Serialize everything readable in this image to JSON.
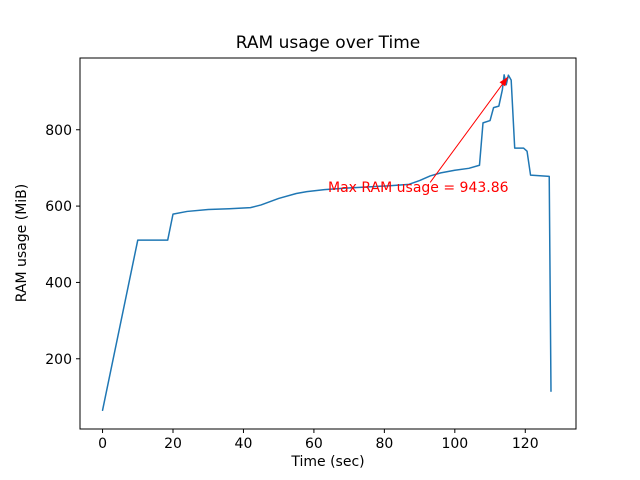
{
  "figure": {
    "background": "#ffffff"
  },
  "chart_data": {
    "type": "line",
    "title": "RAM usage over Time",
    "xlabel": "Time (sec)",
    "ylabel": "RAM usage (MiB)",
    "xlim": [
      -6.4,
      134.4
    ],
    "ylim": [
      16,
      988
    ],
    "xticks": [
      0,
      20,
      40,
      60,
      80,
      100,
      120
    ],
    "yticks": [
      200,
      400,
      600,
      800
    ],
    "grid": false,
    "legend": "none",
    "line_color": "#1f77b4",
    "max_value": 943.86,
    "series": [
      {
        "name": "RAM usage",
        "points": [
          [
            0,
            65
          ],
          [
            10,
            511
          ],
          [
            18.5,
            511
          ],
          [
            20,
            579
          ],
          [
            24,
            586
          ],
          [
            30,
            591
          ],
          [
            36,
            593
          ],
          [
            42,
            596
          ],
          [
            45,
            603
          ],
          [
            50,
            620
          ],
          [
            55,
            633
          ],
          [
            58,
            638
          ],
          [
            63,
            643
          ],
          [
            69,
            647
          ],
          [
            75,
            650
          ],
          [
            81,
            653
          ],
          [
            87,
            657
          ],
          [
            90,
            667
          ],
          [
            93,
            679
          ],
          [
            96,
            687
          ],
          [
            100,
            694
          ],
          [
            104,
            699
          ],
          [
            107,
            707
          ],
          [
            108,
            818
          ],
          [
            110,
            824
          ],
          [
            111,
            858
          ],
          [
            112.5,
            862
          ],
          [
            113.5,
            905
          ],
          [
            114,
            943.86
          ],
          [
            114.6,
            918
          ],
          [
            115.2,
            943
          ],
          [
            116,
            930
          ],
          [
            117,
            752
          ],
          [
            119.5,
            752
          ],
          [
            120.5,
            744
          ],
          [
            121.5,
            681
          ],
          [
            126.8,
            678
          ],
          [
            127.3,
            115
          ]
        ]
      }
    ],
    "annotation": {
      "text": "Max RAM usage = 943.86",
      "color": "#ff0000",
      "text_xy": [
        64,
        648
      ],
      "arrow_from": [
        93,
        662
      ],
      "arrow_to": [
        115,
        938
      ]
    }
  }
}
